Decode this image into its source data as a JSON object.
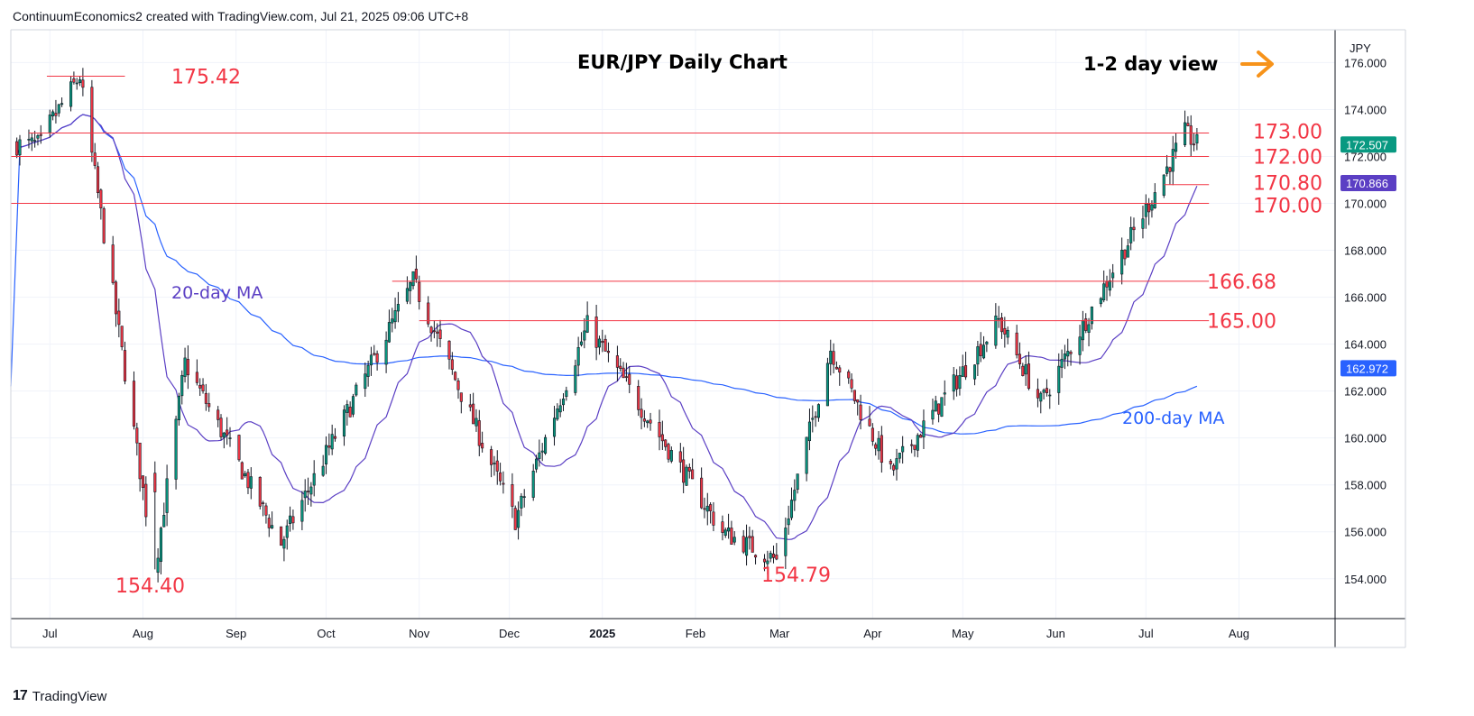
{
  "header": {
    "text": "ContinuumEconomics2 created with TradingView.com, Jul 21, 2025 09:06 UTC+8"
  },
  "footer": {
    "brand": "TradingView",
    "logo": "17"
  },
  "chart_data": {
    "type": "candlestick",
    "title": "EUR/JPY Daily Chart",
    "subtitle": "1-2 day view",
    "currency_label": "JPY",
    "y_ticks": [
      "176.000",
      "174.000",
      "172.000",
      "170.000",
      "168.000",
      "166.000",
      "164.000",
      "162.000",
      "160.000",
      "158.000",
      "156.000",
      "154.000"
    ],
    "ylim": [
      152.3,
      177.4
    ],
    "x_ticks": [
      {
        "label": "Jul",
        "bold": false
      },
      {
        "label": "Aug",
        "bold": false
      },
      {
        "label": "Sep",
        "bold": false
      },
      {
        "label": "Oct",
        "bold": false
      },
      {
        "label": "Nov",
        "bold": false
      },
      {
        "label": "Dec",
        "bold": false
      },
      {
        "label": "2025",
        "bold": true
      },
      {
        "label": "Feb",
        "bold": false
      },
      {
        "label": "Mar",
        "bold": false
      },
      {
        "label": "Apr",
        "bold": false
      },
      {
        "label": "May",
        "bold": false
      },
      {
        "label": "Jun",
        "bold": false
      },
      {
        "label": "Jul",
        "bold": false
      },
      {
        "label": "Aug",
        "bold": false
      }
    ],
    "horizontal_levels": [
      {
        "label": "175.42",
        "value": 175.42
      },
      {
        "label": "173.00",
        "value": 173.0
      },
      {
        "label": "172.00",
        "value": 172.0
      },
      {
        "label": "170.80",
        "value": 170.8
      },
      {
        "label": "170.00",
        "value": 170.0
      },
      {
        "label": "166.68",
        "value": 166.68
      },
      {
        "label": "165.00",
        "value": 165.0
      }
    ],
    "low_labels": [
      {
        "label": "154.40",
        "value": 154.4
      },
      {
        "label": "154.79",
        "value": 154.79
      }
    ],
    "ma_labels": {
      "ma20": "20-day MA",
      "ma200": "200-day MA"
    },
    "price_badges": [
      {
        "label": "172.507",
        "value": 172.507,
        "color": "#089981"
      },
      {
        "label": "170.866",
        "value": 170.866,
        "color": "#5b3fc4"
      },
      {
        "label": "162.972",
        "value": 162.972,
        "color": "#2962ff"
      }
    ],
    "colors": {
      "up": "#089981",
      "down": "#f23645",
      "ma20": "#5b3fc4",
      "ma200": "#2962ff",
      "level": "#f23645",
      "arrow": "#f7931a"
    },
    "key_points": [
      {
        "date": "2024-07-01",
        "close": 173.4
      },
      {
        "date": "2024-07-11",
        "close": 175.42
      },
      {
        "date": "2024-08-05",
        "close": 154.4
      },
      {
        "date": "2024-08-15",
        "close": 163.2
      },
      {
        "date": "2024-09-16",
        "close": 155.5
      },
      {
        "date": "2024-10-30",
        "close": 166.68
      },
      {
        "date": "2024-12-03",
        "close": 156.5
      },
      {
        "date": "2024-12-27",
        "close": 164.8
      },
      {
        "date": "2025-02-10",
        "close": 156.0
      },
      {
        "date": "2025-02-28",
        "close": 154.79
      },
      {
        "date": "2025-03-18",
        "close": 163.8
      },
      {
        "date": "2025-04-07",
        "close": 158.5
      },
      {
        "date": "2025-05-13",
        "close": 165.0
      },
      {
        "date": "2025-05-27",
        "close": 161.5
      },
      {
        "date": "2025-06-30",
        "close": 169.5
      },
      {
        "date": "2025-07-14",
        "close": 173.0
      },
      {
        "date": "2025-07-18",
        "close": 172.507
      }
    ]
  }
}
